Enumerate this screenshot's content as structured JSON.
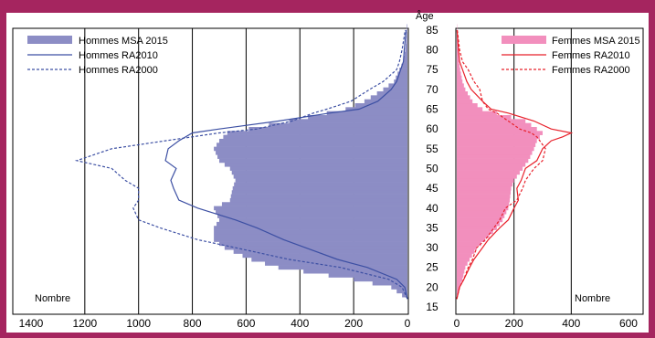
{
  "colors": {
    "frame": "#a5255f",
    "men_fill": "#8c8dc5",
    "men_line": "#3c4fa3",
    "women_fill": "#f28fbd",
    "women_line": "#e8212b"
  },
  "chart_data": [
    {
      "type": "area",
      "panel": "hommes",
      "orientation": "horizontal population pyramid half (values grow to the left)",
      "age_axis_title": "Âge",
      "age_ticks": [
        15,
        20,
        25,
        30,
        35,
        40,
        45,
        50,
        55,
        60,
        65,
        70,
        75,
        80,
        85
      ],
      "xlim": [
        1400,
        0
      ],
      "xticks": [
        "1400",
        "1200",
        "1000",
        "800",
        "600",
        "400",
        "200",
        "0"
      ],
      "xlabel": "Nombre",
      "grid": "vertical",
      "legend_position": "top-left",
      "series": [
        {
          "name": "Hommes MSA 2015",
          "style": "filled bars",
          "ages": [
            17,
            20,
            22,
            25,
            27,
            30,
            32,
            35,
            37,
            40,
            42,
            45,
            47,
            50,
            52,
            55,
            57,
            59,
            60,
            62,
            64,
            65,
            67,
            70,
            72,
            75,
            77,
            80,
            85
          ],
          "values": [
            0,
            60,
            200,
            480,
            580,
            680,
            720,
            720,
            700,
            720,
            660,
            650,
            640,
            660,
            700,
            720,
            700,
            670,
            590,
            440,
            300,
            230,
            160,
            90,
            50,
            30,
            15,
            8,
            2
          ]
        },
        {
          "name": "Hommes RA2010",
          "style": "solid line",
          "ages": [
            17,
            20,
            22,
            25,
            27,
            30,
            32,
            35,
            37,
            40,
            42,
            45,
            47,
            50,
            52,
            55,
            57,
            59,
            60,
            62,
            64,
            65,
            67,
            70,
            72,
            75,
            77,
            80,
            85
          ],
          "values": [
            0,
            10,
            40,
            150,
            260,
            380,
            460,
            560,
            640,
            780,
            850,
            870,
            880,
            860,
            900,
            890,
            850,
            800,
            700,
            480,
            290,
            180,
            110,
            60,
            40,
            25,
            15,
            12,
            5
          ]
        },
        {
          "name": "Hommes RA2000",
          "style": "dotted line",
          "ages": [
            17,
            20,
            22,
            25,
            27,
            30,
            32,
            35,
            37,
            40,
            42,
            45,
            47,
            50,
            52,
            55,
            57,
            59,
            60,
            62,
            64,
            65,
            67,
            70,
            72,
            75,
            77,
            80,
            85
          ],
          "values": [
            0,
            20,
            70,
            250,
            440,
            640,
            780,
            920,
            1000,
            1020,
            1000,
            1000,
            1050,
            1100,
            1230,
            1100,
            900,
            700,
            560,
            430,
            350,
            300,
            210,
            140,
            90,
            40,
            30,
            20,
            8
          ]
        }
      ]
    },
    {
      "type": "area",
      "panel": "femmes",
      "orientation": "horizontal population pyramid half (values grow to the right)",
      "xlim": [
        0,
        600
      ],
      "xticks": [
        "0",
        "200",
        "400",
        "600"
      ],
      "xlabel": "Nombre",
      "grid": "vertical",
      "legend_position": "top-right",
      "series": [
        {
          "name": "Femmes MSA 2015",
          "style": "filled bars",
          "ages": [
            17,
            20,
            22,
            25,
            27,
            30,
            32,
            35,
            37,
            40,
            42,
            45,
            47,
            50,
            52,
            55,
            57,
            58,
            59,
            60,
            62,
            64,
            65,
            67,
            70,
            72,
            75,
            77,
            80,
            85
          ],
          "values": [
            0,
            10,
            20,
            30,
            45,
            70,
            100,
            140,
            160,
            180,
            185,
            190,
            200,
            230,
            250,
            270,
            280,
            290,
            300,
            280,
            240,
            140,
            90,
            55,
            30,
            20,
            12,
            8,
            5,
            1
          ]
        },
        {
          "name": "Femmes RA2010",
          "style": "solid line",
          "ages": [
            17,
            20,
            22,
            25,
            27,
            30,
            32,
            35,
            37,
            40,
            42,
            45,
            47,
            50,
            52,
            55,
            57,
            58,
            59,
            60,
            62,
            64,
            65,
            67,
            70,
            72,
            75,
            77,
            80,
            85
          ],
          "values": [
            0,
            10,
            25,
            45,
            60,
            90,
            110,
            150,
            180,
            200,
            215,
            210,
            225,
            240,
            280,
            300,
            330,
            370,
            400,
            330,
            270,
            180,
            120,
            90,
            50,
            35,
            20,
            10,
            6,
            1
          ]
        },
        {
          "name": "Femmes RA2000",
          "style": "dotted line",
          "ages": [
            17,
            20,
            22,
            25,
            27,
            30,
            32,
            35,
            37,
            40,
            42,
            45,
            47,
            50,
            52,
            55,
            57,
            58,
            59,
            60,
            62,
            64,
            65,
            67,
            70,
            72,
            75,
            77,
            80,
            85
          ],
          "values": [
            0,
            10,
            25,
            40,
            55,
            70,
            100,
            130,
            150,
            170,
            210,
            230,
            240,
            270,
            300,
            310,
            290,
            280,
            260,
            220,
            180,
            140,
            110,
            90,
            80,
            60,
            40,
            20,
            10,
            2
          ]
        }
      ]
    }
  ]
}
